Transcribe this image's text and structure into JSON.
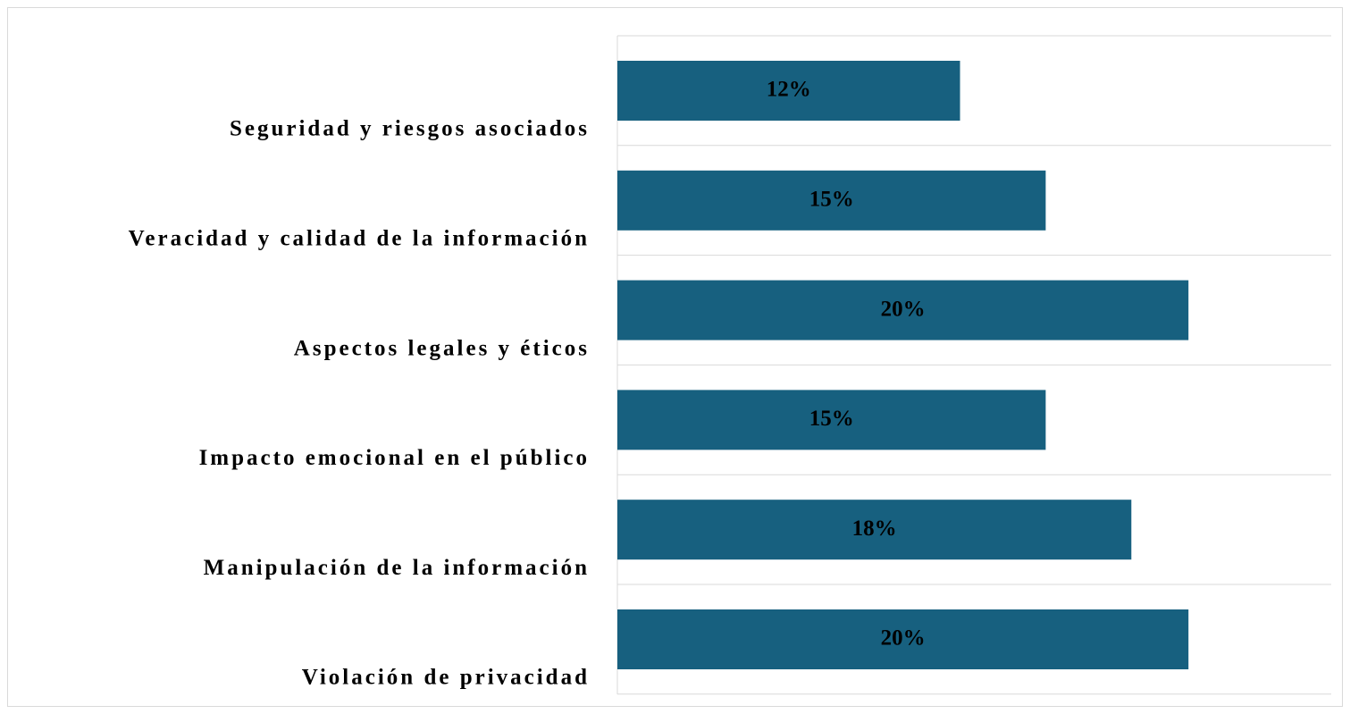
{
  "chart_data": {
    "type": "bar",
    "orientation": "horizontal",
    "categories": [
      "Seguridad y riesgos asociados",
      "Veracidad y calidad de la información",
      "Aspectos legales y éticos",
      "Impacto emocional en el público",
      "Manipulación de la información",
      "Violación de privacidad"
    ],
    "values": [
      12,
      15,
      20,
      15,
      18,
      20
    ],
    "value_labels": [
      "12%",
      "15%",
      "20%",
      "15%",
      "18%",
      "20%"
    ],
    "color": "#17607f",
    "xlim": [
      0,
      25
    ]
  }
}
